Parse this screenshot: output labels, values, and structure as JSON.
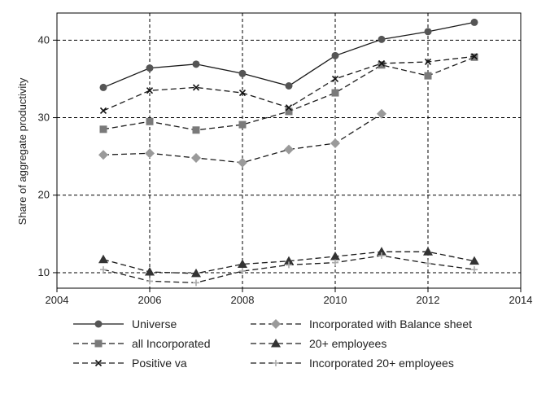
{
  "chart_data": {
    "type": "line",
    "title": "",
    "xlabel": "",
    "ylabel": "Share of aggregate productivity",
    "xlim": [
      2004,
      2014
    ],
    "ylim": [
      8,
      43.5
    ],
    "xticks": [
      2004,
      2006,
      2008,
      2010,
      2012,
      2014
    ],
    "yticks": [
      10,
      20,
      30,
      40
    ],
    "grid": true,
    "legend_position": "bottom",
    "x": [
      2005,
      2006,
      2007,
      2008,
      2009,
      2010,
      2011,
      2012,
      2013
    ],
    "series": [
      {
        "name": "Universe",
        "marker": "circle",
        "line": "solid",
        "color": "#555555",
        "values": [
          33.9,
          36.4,
          36.9,
          35.7,
          34.1,
          38.0,
          40.1,
          41.1,
          42.3
        ]
      },
      {
        "name": "all Incorporated",
        "marker": "square",
        "line": "dashed",
        "color": "#7a7a7a",
        "values": [
          28.5,
          29.5,
          28.4,
          29.1,
          30.8,
          33.2,
          36.8,
          35.4,
          37.8
        ]
      },
      {
        "name": "Positive va",
        "marker": "x",
        "line": "dashed",
        "color": "#111111",
        "values": [
          30.9,
          33.5,
          33.9,
          33.2,
          31.3,
          35.0,
          37.0,
          37.2,
          37.9
        ]
      },
      {
        "name": "Incorporated with Balance sheet",
        "marker": "diamond",
        "line": "dashed",
        "color": "#9a9a9a",
        "values": [
          25.2,
          25.4,
          24.8,
          24.2,
          25.9,
          26.7,
          30.5,
          null,
          null
        ]
      },
      {
        "name": "20+ employees",
        "marker": "triangle",
        "line": "dashed",
        "color": "#333333",
        "values": [
          11.7,
          10.1,
          9.9,
          11.1,
          11.5,
          12.1,
          12.7,
          12.7,
          11.5
        ]
      },
      {
        "name": "Incorporated 20+ employees",
        "marker": "plus",
        "line": "dashed",
        "color": "#aaaaaa",
        "values": [
          10.4,
          8.9,
          8.7,
          10.2,
          11.0,
          11.3,
          12.2,
          11.2,
          10.4
        ]
      }
    ]
  }
}
